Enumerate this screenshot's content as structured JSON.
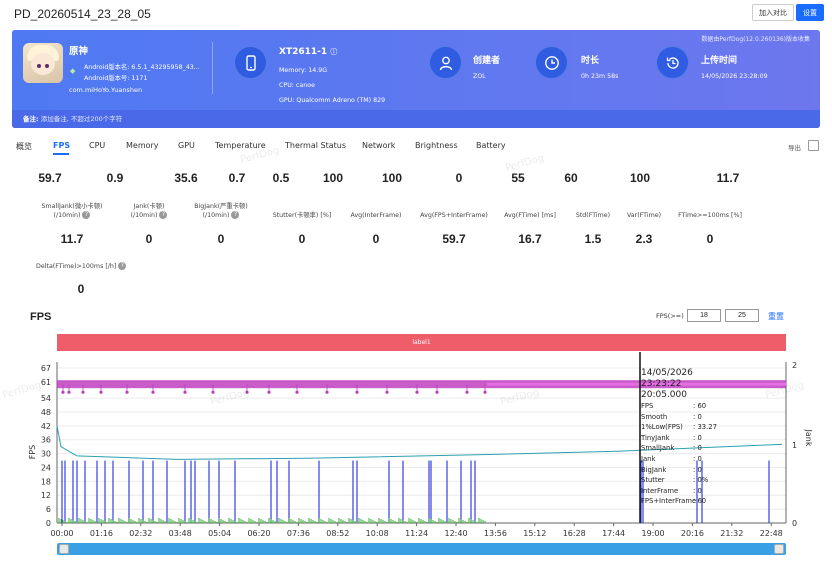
{
  "header": {
    "title": "PD_20260514_23_28_05",
    "compare_label": "加入对比",
    "settings_label": "设置"
  },
  "banner": {
    "data_source": "数据由PerfDog(12.0.260136)版本收集",
    "app": {
      "name": "原神",
      "android_version": "Android版本名: 6.5.1_43295958_43...",
      "android_code": "Android版本号: 1171",
      "package": "com.miHoYo.Yuanshen"
    },
    "device": {
      "name": "XT2611-1",
      "memory": "Memory: 14.9G",
      "cpu": "CPU: canoe",
      "gpu": "GPU: Qualcomm Adreno (TM) 829"
    },
    "creator": {
      "title": "创建者",
      "value": "ZOL"
    },
    "duration": {
      "title": "时长",
      "value": "0h 23m 58s"
    },
    "upload": {
      "title": "上传时间",
      "value": "14/05/2026 23:28:09"
    },
    "note_label": "备注:",
    "note_placeholder": "添加备注, 不超过200个字符"
  },
  "tabs": [
    "概览",
    "FPS",
    "CPU",
    "Memory",
    "GPU",
    "Temperature",
    "Thermal Status",
    "Network",
    "Brightness",
    "Battery"
  ],
  "active_tab": "FPS",
  "export_label": "导出",
  "stats_row1": [
    "59.7",
    "0.9",
    "35.6",
    "0.7",
    "0.5",
    "100",
    "100",
    "0",
    "55",
    "60",
    "100",
    "11.7"
  ],
  "stats_row2": [
    {
      "label1": "SmallJank(微小卡顿)",
      "label2": "(/10min)",
      "value": "11.7",
      "help": true
    },
    {
      "label1": "Jank(卡顿)",
      "label2": "(/10min)",
      "value": "0",
      "help": true
    },
    {
      "label1": "BigJank(严重卡顿)",
      "label2": "(/10min)",
      "value": "0",
      "help": true
    },
    {
      "label1": "Stutter(卡顿率) [%]",
      "label2": "",
      "value": "0",
      "help": false
    },
    {
      "label1": "Avg(InterFrame)",
      "label2": "",
      "value": "0",
      "help": false
    },
    {
      "label1": "Avg(FPS+InterFrame)",
      "label2": "",
      "value": "59.7",
      "help": false
    },
    {
      "label1": "Avg(FTime) [ms]",
      "label2": "",
      "value": "16.7",
      "help": false
    },
    {
      "label1": "Std(FTime)",
      "label2": "",
      "value": "1.5",
      "help": false
    },
    {
      "label1": "Var(FTime)",
      "label2": "",
      "value": "2.3",
      "help": false
    },
    {
      "label1": "FTime>=100ms [%]",
      "label2": "",
      "value": "0",
      "help": false
    }
  ],
  "stats_row3": {
    "label": "Delta(FTime)>100ms [/h]",
    "value": "0"
  },
  "chart_title": "FPS",
  "fps_threshold_label": "FPS(>=)",
  "fps_threshold_1": "18",
  "fps_threshold_2": "25",
  "reset_label": "重置",
  "watermark": "PerfDog",
  "chart_data": {
    "type": "line",
    "label_band": "label1",
    "ylabel": "FPS",
    "y2label": "Jank",
    "yticks": [
      "0",
      "6",
      "12",
      "18",
      "24",
      "30",
      "36",
      "42",
      "48",
      "54",
      "61",
      "67"
    ],
    "y2ticks": [
      "0",
      "1",
      "2"
    ],
    "xticks": [
      "00:00",
      "01:16",
      "02:32",
      "03:48",
      "05:04",
      "06:20",
      "07:36",
      "08:52",
      "10:08",
      "11:24",
      "12:40",
      "13:56",
      "15:12",
      "16:28",
      "17:44",
      "19:00",
      "20:16",
      "21:32",
      "22:48"
    ],
    "series": [
      {
        "name": "FPS",
        "color": "#c040c0",
        "typical_value": 60
      },
      {
        "name": "Smooth",
        "color": "#2aa0b0"
      },
      {
        "name": "Jank",
        "color": "#3344dd"
      },
      {
        "name": "SmallJank",
        "color": "#33aa33"
      }
    ],
    "cursor_time_label": "20:05.000"
  },
  "tooltip": {
    "timestamp": "14/05/2026 23:23:22",
    "time": "20:05.000",
    "rows": [
      {
        "k": "FPS",
        "v": ": 60"
      },
      {
        "k": "Smooth",
        "v": ": 0"
      },
      {
        "k": "1%Low(FPS)",
        "v": ": 33.27"
      },
      {
        "k": "TinyJank",
        "v": ": 0"
      },
      {
        "k": "SmallJank",
        "v": ": 0"
      },
      {
        "k": "Jank",
        "v": ": 0"
      },
      {
        "k": "BigJank",
        "v": ": 0"
      },
      {
        "k": "Stutter",
        "v": ": 0%"
      },
      {
        "k": "InterFrame",
        "v": ": 0"
      },
      {
        "k": "FPS+InterFrame",
        "v": ": 60"
      }
    ]
  }
}
